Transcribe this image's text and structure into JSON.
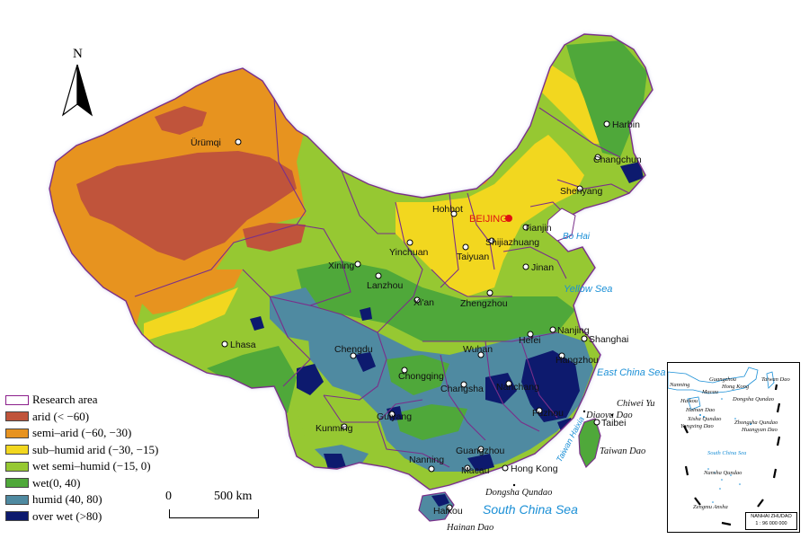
{
  "legend": {
    "outline_label": "Research area",
    "items": [
      {
        "label": "arid (< −60)",
        "color": "#c0543b"
      },
      {
        "label": "semi–arid (−60, −30)",
        "color": "#e7931f"
      },
      {
        "label": "sub–humid arid (−30, −15)",
        "color": "#f2d71f"
      },
      {
        "label": "wet semi–humid (−15, 0)",
        "color": "#96c832"
      },
      {
        "label": "wet(0, 40)",
        "color": "#4fa83a"
      },
      {
        "label": "humid (40, 80)",
        "color": "#4f8aa1"
      },
      {
        "label": "over wet (>80)",
        "color": "#0d1a6e"
      }
    ]
  },
  "north_arrow": {
    "label": "N"
  },
  "scale_bar": {
    "start": "0",
    "end": "500 km"
  },
  "cities": {
    "urumqi": "Ürümqi",
    "harbin": "Harbin",
    "changchun": "Changchun",
    "shenyang": "Shenyang",
    "hohhot": "Hohhot",
    "beijing": "BEIJING",
    "tianjin": "Tianjin",
    "shijiazhuang": "Shijiazhuang",
    "yinchuan": "Yinchuan",
    "taiyuan": "Taiyuan",
    "jinan": "Jinan",
    "xining": "Xining",
    "lanzhou": "Lanzhou",
    "xian": "Xi'an",
    "zhengzhou": "Zhengzhou",
    "lhasa": "Lhasa",
    "chengdu": "Chengdu",
    "wuhan": "Wuhan",
    "hefei": "Hefei",
    "nanjing": "Nanjing",
    "shanghai": "Shanghai",
    "hangzhou": "Hangzhou",
    "chongqing": "Chongqing",
    "changsha": "Changsha",
    "nanchang": "Nanchang",
    "fuzhou": "Fuzhou",
    "guiyang": "Guiyang",
    "kunming": "Kunming",
    "nanning": "Nanning",
    "guangzhou": "Guangzhou",
    "macau": "Macau",
    "hong_kong": "Hong Kong",
    "haikou": "Haikou",
    "taibei": "Taibei"
  },
  "seas": {
    "bo_hai": "Bo Hai",
    "yellow_sea": "Yellow Sea",
    "east_china_sea": "East China Sea",
    "south_china_sea": "South China Sea",
    "taiwan_haixia": "Taiwan Haixia"
  },
  "islands": {
    "chiwei_yu": "Chiwei Yu",
    "diaoyu_dao": "Diaoyu Dao",
    "taiwan_dao": "Taiwan Dao",
    "dongsha_qundao": "Dongsha Qundao",
    "hainan_dao": "Hainan Dao"
  },
  "inset": {
    "labels": {
      "guangzhou": "Guangzhou",
      "nanning": "Nanning",
      "hong_kong": "Hong Kong",
      "taiwan_dao": "Taiwan Dao",
      "macau": "Macau",
      "haikou": "Haikou",
      "dongsha_qundao": "Dongsha Qundao",
      "hainan_dao": "Hainan Dao",
      "xisha_qundao": "Xisha Qundao",
      "yongxing_dao": "Yongxing Dao",
      "zhongsha_qundao": "Zhongsha Qundao",
      "huangyan_dao": "Huangyan Dao",
      "south_china_sea": "South China Sea",
      "nansha_qundao": "Nansha Qundao",
      "zengmu_ansha": "Zengmu Ansha"
    },
    "scale_title": "NANHAI ZHUDAO",
    "scale_text": "1 : 96 000 000"
  }
}
